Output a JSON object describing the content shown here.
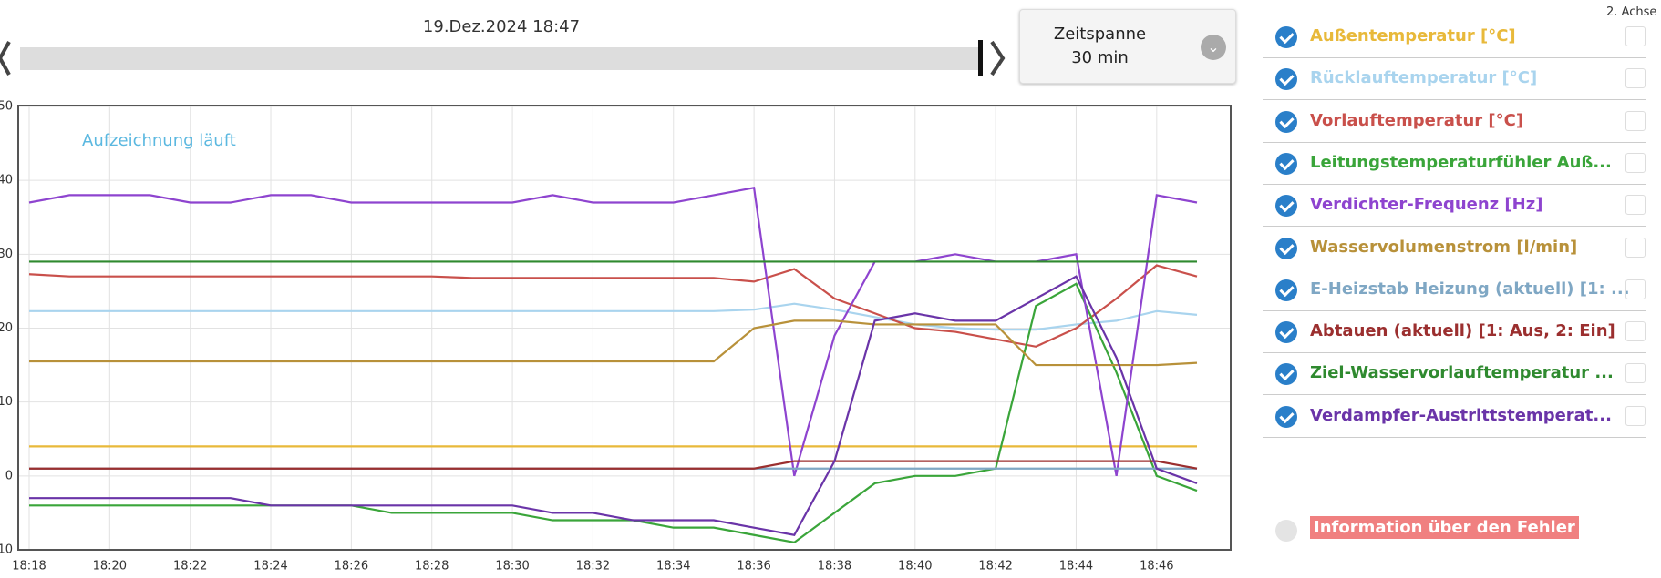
{
  "date_label": "19.Dez.2024 18:47",
  "timespan_label": "Zeitspanne 30 min",
  "axis2_label": "2. Achse",
  "error_label": "Information über den Fehler",
  "chart_data": {
    "type": "line",
    "annotation": "Aufzeichnung läuft",
    "x": [
      "18:18",
      "18:19",
      "18:20",
      "18:21",
      "18:22",
      "18:23",
      "18:24",
      "18:25",
      "18:26",
      "18:27",
      "18:28",
      "18:29",
      "18:30",
      "18:31",
      "18:32",
      "18:33",
      "18:34",
      "18:35",
      "18:36",
      "18:37",
      "18:38",
      "18:39",
      "18:40",
      "18:41",
      "18:42",
      "18:43",
      "18:44",
      "18:45",
      "18:46",
      "18:47"
    ],
    "xlim": [
      "18:18",
      "18:47"
    ],
    "xticks": [
      "18:18",
      "18:20",
      "18:22",
      "18:24",
      "18:26",
      "18:28",
      "18:30",
      "18:32",
      "18:34",
      "18:36",
      "18:38",
      "18:40",
      "18:42",
      "18:44",
      "18:46"
    ],
    "ylim": [
      -10,
      50
    ],
    "yticks": [
      -10,
      0,
      10,
      20,
      30,
      40,
      50
    ],
    "grid": true,
    "series": [
      {
        "name": "Außentemperatur [°C]",
        "color": "#e8b93a",
        "values": [
          4,
          4,
          4,
          4,
          4,
          4,
          4,
          4,
          4,
          4,
          4,
          4,
          4,
          4,
          4,
          4,
          4,
          4,
          4,
          4,
          4,
          4,
          4,
          4,
          4,
          4,
          4,
          4,
          4,
          4
        ]
      },
      {
        "name": "Rücklauftemperatur [°C]",
        "color": "#a9d4ee",
        "values": [
          22.3,
          22.3,
          22.3,
          22.3,
          22.3,
          22.3,
          22.3,
          22.3,
          22.3,
          22.3,
          22.3,
          22.3,
          22.3,
          22.3,
          22.3,
          22.3,
          22.3,
          22.3,
          22.5,
          23.3,
          22.5,
          21.5,
          20.5,
          20,
          19.8,
          19.8,
          20.5,
          21,
          22.3,
          21.8
        ]
      },
      {
        "name": "Vorlauftemperatur [°C]",
        "color": "#c9504b",
        "values": [
          27.3,
          27,
          27,
          27,
          27,
          27,
          27,
          27,
          27,
          27,
          27,
          26.8,
          26.8,
          26.8,
          26.8,
          26.8,
          26.8,
          26.8,
          26.3,
          28,
          24,
          22,
          20,
          19.5,
          18.5,
          17.5,
          20,
          24,
          28.5,
          27
        ]
      },
      {
        "name": "Leitungstemperaturfühler Auß...",
        "color": "#3aa53a",
        "values": [
          -4,
          -4,
          -4,
          -4,
          -4,
          -4,
          -4,
          -4,
          -4,
          -5,
          -5,
          -5,
          -5,
          -6,
          -6,
          -6,
          -7,
          -7,
          -8,
          -9,
          -5,
          -1,
          0,
          0,
          1,
          23,
          26,
          14,
          0,
          -2
        ]
      },
      {
        "name": "Verdichter-Frequenz [Hz]",
        "color": "#8e44cf",
        "values": [
          37,
          38,
          38,
          38,
          37,
          37,
          38,
          38,
          37,
          37,
          37,
          37,
          37,
          38,
          37,
          37,
          37,
          38,
          39,
          0,
          19,
          29,
          29,
          30,
          29,
          29,
          30,
          0,
          38,
          37
        ]
      },
      {
        "name": "Wasservolumenstrom [l/min]",
        "color": "#b8913a",
        "values": [
          15.5,
          15.5,
          15.5,
          15.5,
          15.5,
          15.5,
          15.5,
          15.5,
          15.5,
          15.5,
          15.5,
          15.5,
          15.5,
          15.5,
          15.5,
          15.5,
          15.5,
          15.5,
          20,
          21,
          21,
          20.5,
          20.5,
          20.5,
          20.5,
          15,
          15,
          15,
          15,
          15.3
        ]
      },
      {
        "name": "E-Heizstab Heizung (aktuell) [1: ...",
        "color": "#7fa7c4",
        "values": [
          1,
          1,
          1,
          1,
          1,
          1,
          1,
          1,
          1,
          1,
          1,
          1,
          1,
          1,
          1,
          1,
          1,
          1,
          1,
          1,
          1,
          1,
          1,
          1,
          1,
          1,
          1,
          1,
          1,
          1
        ]
      },
      {
        "name": "Abtauen (aktuell) [1: Aus, 2: Ein]",
        "color": "#9b2f2f",
        "values": [
          1,
          1,
          1,
          1,
          1,
          1,
          1,
          1,
          1,
          1,
          1,
          1,
          1,
          1,
          1,
          1,
          1,
          1,
          1,
          2,
          2,
          2,
          2,
          2,
          2,
          2,
          2,
          2,
          2,
          1
        ]
      },
      {
        "name": "Ziel-Wasservorlauftemperatur ...",
        "color": "#2f8a2f",
        "values": [
          29,
          29,
          29,
          29,
          29,
          29,
          29,
          29,
          29,
          29,
          29,
          29,
          29,
          29,
          29,
          29,
          29,
          29,
          29,
          29,
          29,
          29,
          29,
          29,
          29,
          29,
          29,
          29,
          29,
          29
        ]
      },
      {
        "name": "Verdampfer-Austrittstemperat...",
        "color": "#6a34a8",
        "values": [
          -3,
          -3,
          -3,
          -3,
          -3,
          -3,
          -4,
          -4,
          -4,
          -4,
          -4,
          -4,
          -4,
          -5,
          -5,
          -6,
          -6,
          -6,
          -7,
          -8,
          2,
          21,
          22,
          21,
          21,
          24,
          27,
          16,
          1,
          -1
        ]
      }
    ]
  }
}
